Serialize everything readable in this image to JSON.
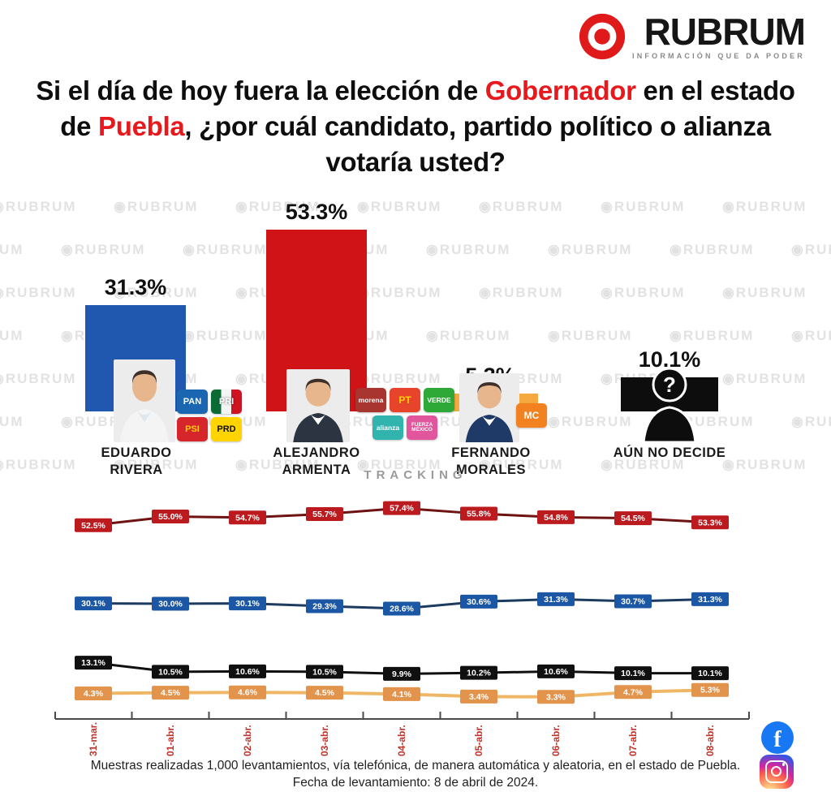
{
  "logo": {
    "brand": "RUBRUM",
    "tagline": "INFORMACIÓN QUE DA PODER"
  },
  "watermark": {
    "text": "RUBRUM"
  },
  "title": {
    "part1": "Si el día de hoy fuera la elección de ",
    "highlight1": "Gobernador",
    "part2": " en el estado de ",
    "highlight2": "Puebla",
    "part3": ", ¿por cuál candidato, partido político o alianza votaría usted?"
  },
  "chart_data": [
    {
      "type": "bar",
      "categories": [
        "EDUARDO RIVERA",
        "ALEJANDRO ARMENTA",
        "FERNANDO MORALES",
        "AÚN NO DECIDE"
      ],
      "values": [
        31.3,
        53.3,
        5.3,
        10.1
      ],
      "unit": "%",
      "colors": [
        "#2058b0",
        "#d01317",
        "#f5a93e",
        "#0d0d0d"
      ],
      "title": "",
      "xlabel": "",
      "ylabel": "",
      "ylim": [
        0,
        60
      ]
    },
    {
      "type": "line",
      "title": "TRACKING",
      "x": [
        "31-mar.",
        "01-abr.",
        "02-abr.",
        "03-abr.",
        "04-abr.",
        "05-abr.",
        "06-abr.",
        "07-abr.",
        "08-abr."
      ],
      "unit": "%",
      "ylim": [
        0,
        60
      ],
      "legend": "none",
      "series": [
        {
          "name": "Alejandro Armenta",
          "box_color": "#bb1a1e",
          "line_color": "#6e1212",
          "values": [
            52.5,
            55.0,
            54.7,
            55.7,
            57.4,
            55.8,
            54.8,
            54.5,
            53.3
          ]
        },
        {
          "name": "Eduardo Rivera",
          "box_color": "#1c57a5",
          "line_color": "#1d3a5f",
          "values": [
            30.1,
            30.0,
            30.1,
            29.3,
            28.6,
            30.6,
            31.3,
            30.7,
            31.3
          ]
        },
        {
          "name": "Aún no decide",
          "box_color": "#101010",
          "line_color": "#101010",
          "values": [
            13.1,
            10.5,
            10.6,
            10.5,
            9.9,
            10.2,
            10.6,
            10.1,
            10.1
          ]
        },
        {
          "name": "Fernando Morales",
          "box_color": "#e2944c",
          "line_color": "#efb765",
          "values": [
            4.3,
            4.5,
            4.6,
            4.5,
            4.1,
            3.4,
            3.3,
            4.7,
            5.3
          ]
        }
      ]
    }
  ],
  "candidates": [
    {
      "name_line1": "EDUARDO",
      "name_line2": "RIVERA",
      "parties": [
        {
          "label": "PAN",
          "bg": "#1a66b0",
          "fg": "#ffffff",
          "fs": 11
        },
        {
          "label": "PRI",
          "tricolor": true,
          "fg": "#ffffff",
          "fs": 11
        },
        {
          "label": "PSI",
          "bg": "#d6252b",
          "fg": "#ffd400",
          "fs": 11
        },
        {
          "label": "PRD",
          "bg": "#ffd400",
          "fg": "#111111",
          "fs": 11
        }
      ]
    },
    {
      "name_line1": "ALEJANDRO",
      "name_line2": "ARMENTA",
      "parties": [
        {
          "label": "morena",
          "bg": "#a8352f",
          "fg": "#ffffff",
          "fs": 8.5
        },
        {
          "label": "PT",
          "bg": "#e8442c",
          "fg": "#ffd400",
          "fs": 12
        },
        {
          "label": "VERDE",
          "bg": "#2ea836",
          "fg": "#ffffff",
          "fs": 8.5
        },
        {
          "label": "alianza",
          "bg": "#31b3ae",
          "fg": "#ffffff",
          "fs": 8.5
        },
        {
          "label": "FUERZA MÉXICO",
          "bg": "#e0559c",
          "fg": "#ffffff",
          "fs": 6.5
        }
      ]
    },
    {
      "name_line1": "FERNANDO",
      "name_line2": "MORALES",
      "parties": [
        {
          "label": "MC",
          "bg": "#f28220",
          "fg": "#ffffff",
          "fs": 12
        }
      ]
    },
    {
      "name_line1": "AÚN NO DECIDE",
      "name_line2": "",
      "parties": []
    }
  ],
  "footer": {
    "line1": "Muestras realizadas 1,000 levantamientos, vía telefónica, de manera automática y aleatoria, en el estado de Puebla.",
    "line2": "Fecha de levantamiento: 8 de abril de 2024."
  },
  "social": {
    "icons": [
      "facebook",
      "instagram"
    ]
  }
}
